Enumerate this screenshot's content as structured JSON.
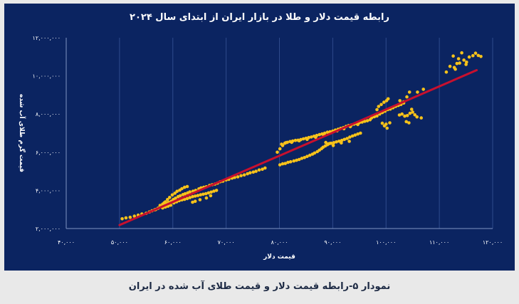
{
  "caption": "نمودار ۵-رابطه قیمت دلار و قیمت طلای آب شده در ایران",
  "colors": {
    "panel": "#0b2461",
    "points": "#f7c21a",
    "trend": "#c8102e",
    "grid": "#2e4a8c",
    "text": "#ffffff"
  },
  "chart_data": {
    "type": "scatter",
    "title": "رابطه قیمت دلار و طلا در بازار ایران از ابتدای سال ۲۰۲۴",
    "xlabel": "قیمت دلار",
    "ylabel": "قیمت گرم طلای آب شده",
    "xlim": [
      40000,
      120000
    ],
    "ylim": [
      2000000,
      12000000
    ],
    "x_ticks": [
      40000,
      50000,
      60000,
      70000,
      80000,
      90000,
      100000,
      110000,
      120000
    ],
    "x_tick_labels": [
      "۴۰,۰۰۰",
      "۵۰,۰۰۰",
      "۶۰,۰۰۰",
      "۷۰,۰۰۰",
      "۸۰,۰۰۰",
      "۹۰,۰۰۰",
      "۱۰۰,۰۰۰",
      "۱۱۰,۰۰۰",
      "۱۲۰,۰۰۰"
    ],
    "y_ticks": [
      2000000,
      4000000,
      6000000,
      8000000,
      10000000,
      12000000
    ],
    "y_tick_labels": [
      "۲,۰۰۰,۰۰۰",
      "۴,۰۰۰,۰۰۰",
      "۶,۰۰۰,۰۰۰",
      "۸,۰۰۰,۰۰۰",
      "۱۰,۰۰۰,۰۰۰",
      "۱۲,۰۰۰,۰۰۰"
    ],
    "grid": "vertical",
    "trendline": {
      "x": [
        50000,
        117000
      ],
      "y": [
        2180000,
        10300000
      ]
    },
    "points": [
      [
        50500,
        2510000
      ],
      [
        51200,
        2560000
      ],
      [
        52000,
        2590000
      ],
      [
        52800,
        2650000
      ],
      [
        53500,
        2700000
      ],
      [
        54200,
        2760000
      ],
      [
        55000,
        2800000
      ],
      [
        55600,
        2870000
      ],
      [
        56100,
        2930000
      ],
      [
        56800,
        3000000
      ],
      [
        57300,
        3070000
      ],
      [
        57900,
        3130000
      ],
      [
        58300,
        3200000
      ],
      [
        58800,
        3290000
      ],
      [
        59200,
        3370000
      ],
      [
        59700,
        3430000
      ],
      [
        60100,
        3520000
      ],
      [
        60500,
        3590000
      ],
      [
        61000,
        3670000
      ],
      [
        61400,
        3720000
      ],
      [
        61900,
        3780000
      ],
      [
        62300,
        3820000
      ],
      [
        62800,
        3870000
      ],
      [
        63200,
        3920000
      ],
      [
        63800,
        3960000
      ],
      [
        64300,
        4000000
      ],
      [
        64900,
        4080000
      ],
      [
        65300,
        4130000
      ],
      [
        65800,
        4160000
      ],
      [
        66300,
        4190000
      ],
      [
        66900,
        4260000
      ],
      [
        67400,
        4300000
      ],
      [
        67900,
        4330000
      ],
      [
        68400,
        4380000
      ],
      [
        68900,
        4450000
      ],
      [
        69400,
        4480000
      ],
      [
        70000,
        4550000
      ],
      [
        70500,
        4580000
      ],
      [
        71100,
        4640000
      ],
      [
        71600,
        4680000
      ],
      [
        72200,
        4710000
      ],
      [
        72800,
        4770000
      ],
      [
        73400,
        4810000
      ],
      [
        74000,
        4870000
      ],
      [
        74500,
        4920000
      ],
      [
        75100,
        4960000
      ],
      [
        75600,
        5000000
      ],
      [
        76200,
        5070000
      ],
      [
        76800,
        5110000
      ],
      [
        77300,
        5170000
      ],
      [
        58100,
        3280000
      ],
      [
        58600,
        3400000
      ],
      [
        59000,
        3520000
      ],
      [
        59400,
        3630000
      ],
      [
        59900,
        3760000
      ],
      [
        60400,
        3850000
      ],
      [
        60800,
        3950000
      ],
      [
        61300,
        4010000
      ],
      [
        61700,
        4090000
      ],
      [
        62200,
        4160000
      ],
      [
        62700,
        4200000
      ],
      [
        57600,
        3210000
      ],
      [
        58400,
        3350000
      ],
      [
        57200,
        3060000
      ],
      [
        56600,
        2980000
      ],
      [
        60200,
        3340000
      ],
      [
        60700,
        3400000
      ],
      [
        61200,
        3460000
      ],
      [
        61700,
        3500000
      ],
      [
        62200,
        3530000
      ],
      [
        62700,
        3570000
      ],
      [
        63200,
        3620000
      ],
      [
        63700,
        3670000
      ],
      [
        64200,
        3700000
      ],
      [
        64700,
        3730000
      ],
      [
        65200,
        3770000
      ],
      [
        65700,
        3800000
      ],
      [
        66200,
        3830000
      ],
      [
        66700,
        3870000
      ],
      [
        67200,
        3910000
      ],
      [
        67700,
        3960000
      ],
      [
        68200,
        4000000
      ],
      [
        59600,
        3220000
      ],
      [
        59100,
        3170000
      ],
      [
        58600,
        3130000
      ],
      [
        58100,
        3080000
      ],
      [
        63700,
        3380000
      ],
      [
        64200,
        3430000
      ],
      [
        65100,
        3510000
      ],
      [
        66300,
        3600000
      ],
      [
        67100,
        3720000
      ],
      [
        80100,
        5340000
      ],
      [
        80600,
        5390000
      ],
      [
        81100,
        5410000
      ],
      [
        81600,
        5470000
      ],
      [
        82100,
        5500000
      ],
      [
        82700,
        5540000
      ],
      [
        83200,
        5580000
      ],
      [
        83700,
        5620000
      ],
      [
        84200,
        5680000
      ],
      [
        84700,
        5720000
      ],
      [
        85200,
        5780000
      ],
      [
        85700,
        5840000
      ],
      [
        86200,
        5900000
      ],
      [
        86600,
        5960000
      ],
      [
        87100,
        6030000
      ],
      [
        87500,
        6110000
      ],
      [
        87900,
        6190000
      ],
      [
        88200,
        6260000
      ],
      [
        88600,
        6330000
      ],
      [
        89000,
        6390000
      ],
      [
        89400,
        6460000
      ],
      [
        79600,
        6000000
      ],
      [
        80100,
        6180000
      ],
      [
        80600,
        6350000
      ],
      [
        81000,
        6470000
      ],
      [
        81500,
        6520000
      ],
      [
        82000,
        6560000
      ],
      [
        82500,
        6590000
      ],
      [
        83000,
        6620000
      ],
      [
        83500,
        6630000
      ],
      [
        84000,
        6660000
      ],
      [
        84500,
        6700000
      ],
      [
        85000,
        6730000
      ],
      [
        85500,
        6770000
      ],
      [
        86000,
        6800000
      ],
      [
        86500,
        6840000
      ],
      [
        87000,
        6880000
      ],
      [
        87500,
        6920000
      ],
      [
        88000,
        6960000
      ],
      [
        88500,
        7000000
      ],
      [
        89000,
        7050000
      ],
      [
        89500,
        7070000
      ],
      [
        90000,
        7110000
      ],
      [
        90500,
        7160000
      ],
      [
        91000,
        7200000
      ],
      [
        91500,
        7250000
      ],
      [
        92000,
        7290000
      ],
      [
        92500,
        7350000
      ],
      [
        93000,
        7400000
      ],
      [
        93500,
        7430000
      ],
      [
        94000,
        7470000
      ],
      [
        94500,
        7500000
      ],
      [
        95000,
        7550000
      ],
      [
        95500,
        7580000
      ],
      [
        96000,
        7620000
      ],
      [
        96500,
        7650000
      ],
      [
        97000,
        7700000
      ],
      [
        80400,
        6420000
      ],
      [
        81200,
        6500000
      ],
      [
        82300,
        6520000
      ],
      [
        83700,
        6600000
      ],
      [
        85200,
        6670000
      ],
      [
        86800,
        6780000
      ],
      [
        88300,
        6900000
      ],
      [
        89600,
        7010000
      ],
      [
        90800,
        7120000
      ],
      [
        92100,
        7230000
      ],
      [
        93300,
        7340000
      ],
      [
        94700,
        7450000
      ],
      [
        89200,
        6440000
      ],
      [
        89700,
        6470000
      ],
      [
        90200,
        6500000
      ],
      [
        90700,
        6540000
      ],
      [
        91200,
        6580000
      ],
      [
        91700,
        6620000
      ],
      [
        92200,
        6670000
      ],
      [
        92700,
        6720000
      ],
      [
        93200,
        6790000
      ],
      [
        93700,
        6850000
      ],
      [
        94200,
        6900000
      ],
      [
        94700,
        6950000
      ],
      [
        95200,
        7000000
      ],
      [
        88700,
        6510000
      ],
      [
        90100,
        6350000
      ],
      [
        91600,
        6490000
      ],
      [
        93100,
        6570000
      ],
      [
        97300,
        7800000
      ],
      [
        97800,
        7860000
      ],
      [
        98300,
        7900000
      ],
      [
        98800,
        8000000
      ],
      [
        99300,
        8080000
      ],
      [
        99800,
        8150000
      ],
      [
        100300,
        8230000
      ],
      [
        100800,
        8260000
      ],
      [
        101300,
        8330000
      ],
      [
        101800,
        8400000
      ],
      [
        102300,
        8450000
      ],
      [
        102800,
        8500000
      ],
      [
        103300,
        8580000
      ],
      [
        98600,
        8400000
      ],
      [
        99100,
        8500000
      ],
      [
        99600,
        8620000
      ],
      [
        100100,
        8700000
      ],
      [
        100400,
        8800000
      ],
      [
        98300,
        8230000
      ],
      [
        99700,
        7380000
      ],
      [
        100200,
        7260000
      ],
      [
        100000,
        7470000
      ],
      [
        99300,
        7520000
      ],
      [
        100700,
        7540000
      ],
      [
        102500,
        7950000
      ],
      [
        103000,
        8000000
      ],
      [
        103500,
        7890000
      ],
      [
        104000,
        7920000
      ],
      [
        104500,
        8040000
      ],
      [
        105000,
        8100000
      ],
      [
        105400,
        7960000
      ],
      [
        105800,
        7850000
      ],
      [
        103800,
        7600000
      ],
      [
        104300,
        7540000
      ],
      [
        103300,
        8640000
      ],
      [
        102600,
        8700000
      ],
      [
        103900,
        8900000
      ],
      [
        104400,
        9150000
      ],
      [
        105900,
        9150000
      ],
      [
        107000,
        9300000
      ],
      [
        106600,
        7800000
      ],
      [
        104800,
        8250000
      ],
      [
        111300,
        10200000
      ],
      [
        112000,
        10500000
      ],
      [
        112800,
        10440000
      ],
      [
        113300,
        10650000
      ],
      [
        113800,
        10670000
      ],
      [
        114600,
        10830000
      ],
      [
        115100,
        10720000
      ],
      [
        115600,
        10990000
      ],
      [
        116300,
        11060000
      ],
      [
        116800,
        11190000
      ],
      [
        117300,
        11070000
      ],
      [
        117800,
        11020000
      ],
      [
        114200,
        11210000
      ],
      [
        113600,
        10900000
      ],
      [
        112600,
        11040000
      ],
      [
        113000,
        10350000
      ],
      [
        115000,
        10600000
      ]
    ]
  }
}
